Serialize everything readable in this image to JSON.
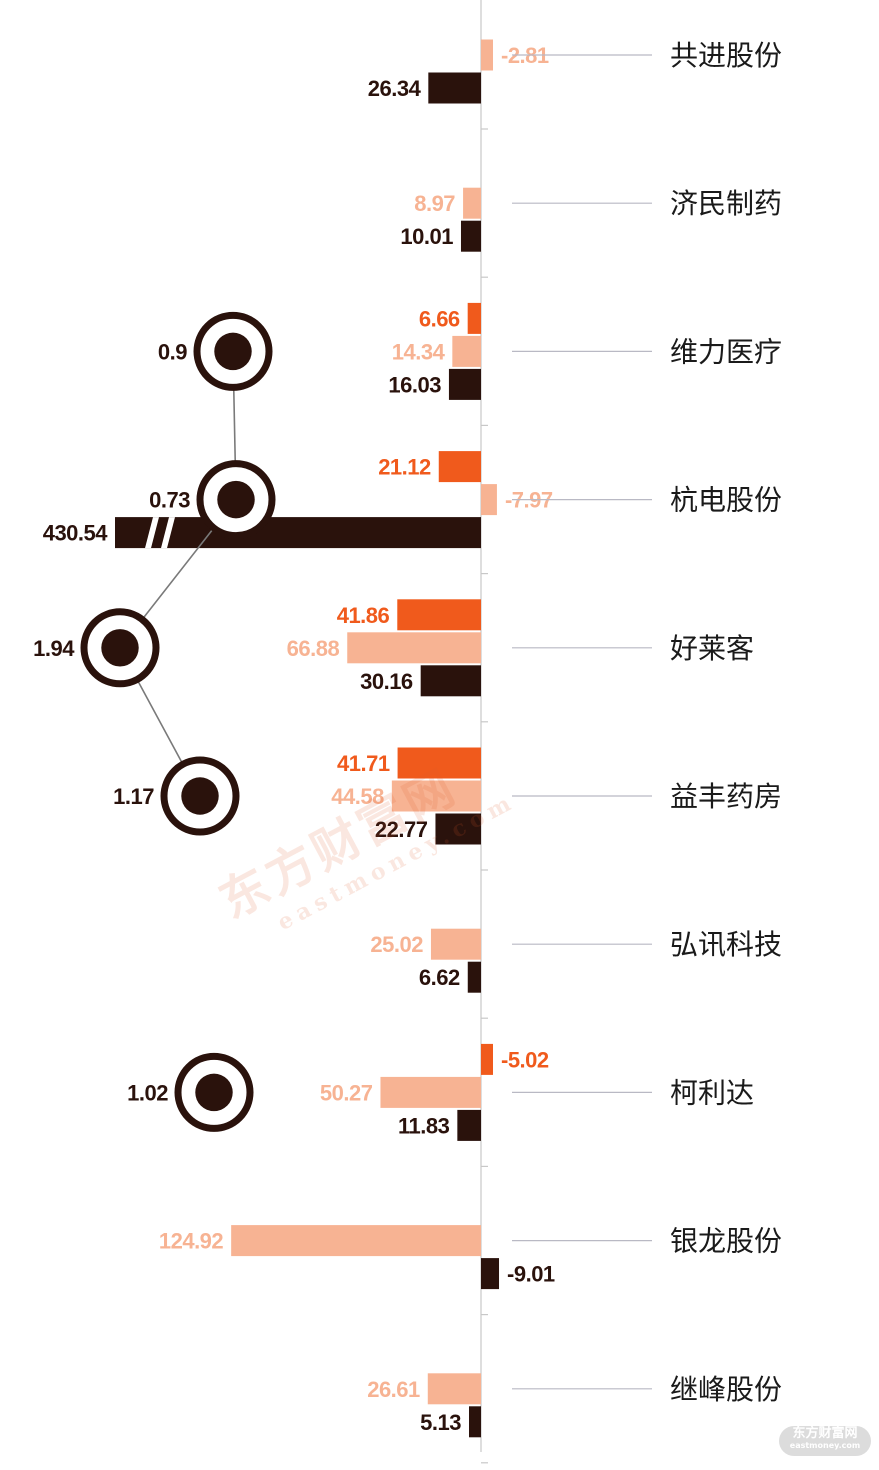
{
  "chart_data": {
    "type": "bar",
    "orientation": "horizontal",
    "categories": [
      "共进股份",
      "济民制药",
      "维力医疗",
      "杭电股份",
      "好莱客",
      "益丰药房",
      "弘讯科技",
      "柯利达",
      "银龙股份",
      "继峰股份"
    ],
    "series": [
      {
        "key": "s1",
        "color": "#f05a1c",
        "values": [
          null,
          null,
          6.66,
          21.12,
          41.86,
          41.71,
          null,
          -5.02,
          null,
          null
        ]
      },
      {
        "key": "s2",
        "color": "#f7b393",
        "values": [
          -2.81,
          8.97,
          14.34,
          -7.97,
          66.88,
          44.58,
          25.02,
          50.27,
          124.92,
          26.61
        ]
      },
      {
        "key": "s3",
        "color": "#2a120c",
        "values": [
          26.34,
          10.01,
          16.03,
          430.54,
          30.16,
          22.77,
          6.62,
          11.83,
          -9.01,
          5.13
        ]
      }
    ],
    "value_labels": {
      "s1": [
        null,
        null,
        "6.66",
        "21.12",
        "41.86",
        "41.71",
        null,
        "-5.02",
        null,
        null
      ],
      "s2": [
        "-2.81",
        "8.97",
        "14.34",
        "-7.97",
        "66.88",
        "44.58",
        "25.02",
        "50.27",
        "124.92",
        "26.61"
      ],
      "s3": [
        "26.34",
        "10.01",
        "16.03",
        "430.54",
        "30.16",
        "22.77",
        "6.62",
        "11.83",
        "-9.01",
        "5.13"
      ]
    },
    "axis_break_on": "430.54",
    "bubble_series": [
      {
        "category": "维力医疗",
        "value": 0.9,
        "label": "0.9"
      },
      {
        "category": "杭电股份",
        "value": 0.73,
        "label": "0.73"
      },
      {
        "category": "好莱客",
        "value": 1.94,
        "label": "1.94"
      },
      {
        "category": "益丰药房",
        "value": 1.17,
        "label": "1.17"
      },
      {
        "category": "柯利达",
        "value": 1.02,
        "label": "1.02"
      }
    ],
    "colors": {
      "orange": "#f05a1c",
      "peach": "#f7b393",
      "dark": "#2a120c",
      "axis": "#c8c8c8",
      "leader": "#b9b9c4"
    }
  },
  "watermark": {
    "cn": "东方财富网",
    "en": "eastmoney.com"
  },
  "logo": {
    "cn": "东方财富网",
    "en": "eastmoney.com"
  }
}
